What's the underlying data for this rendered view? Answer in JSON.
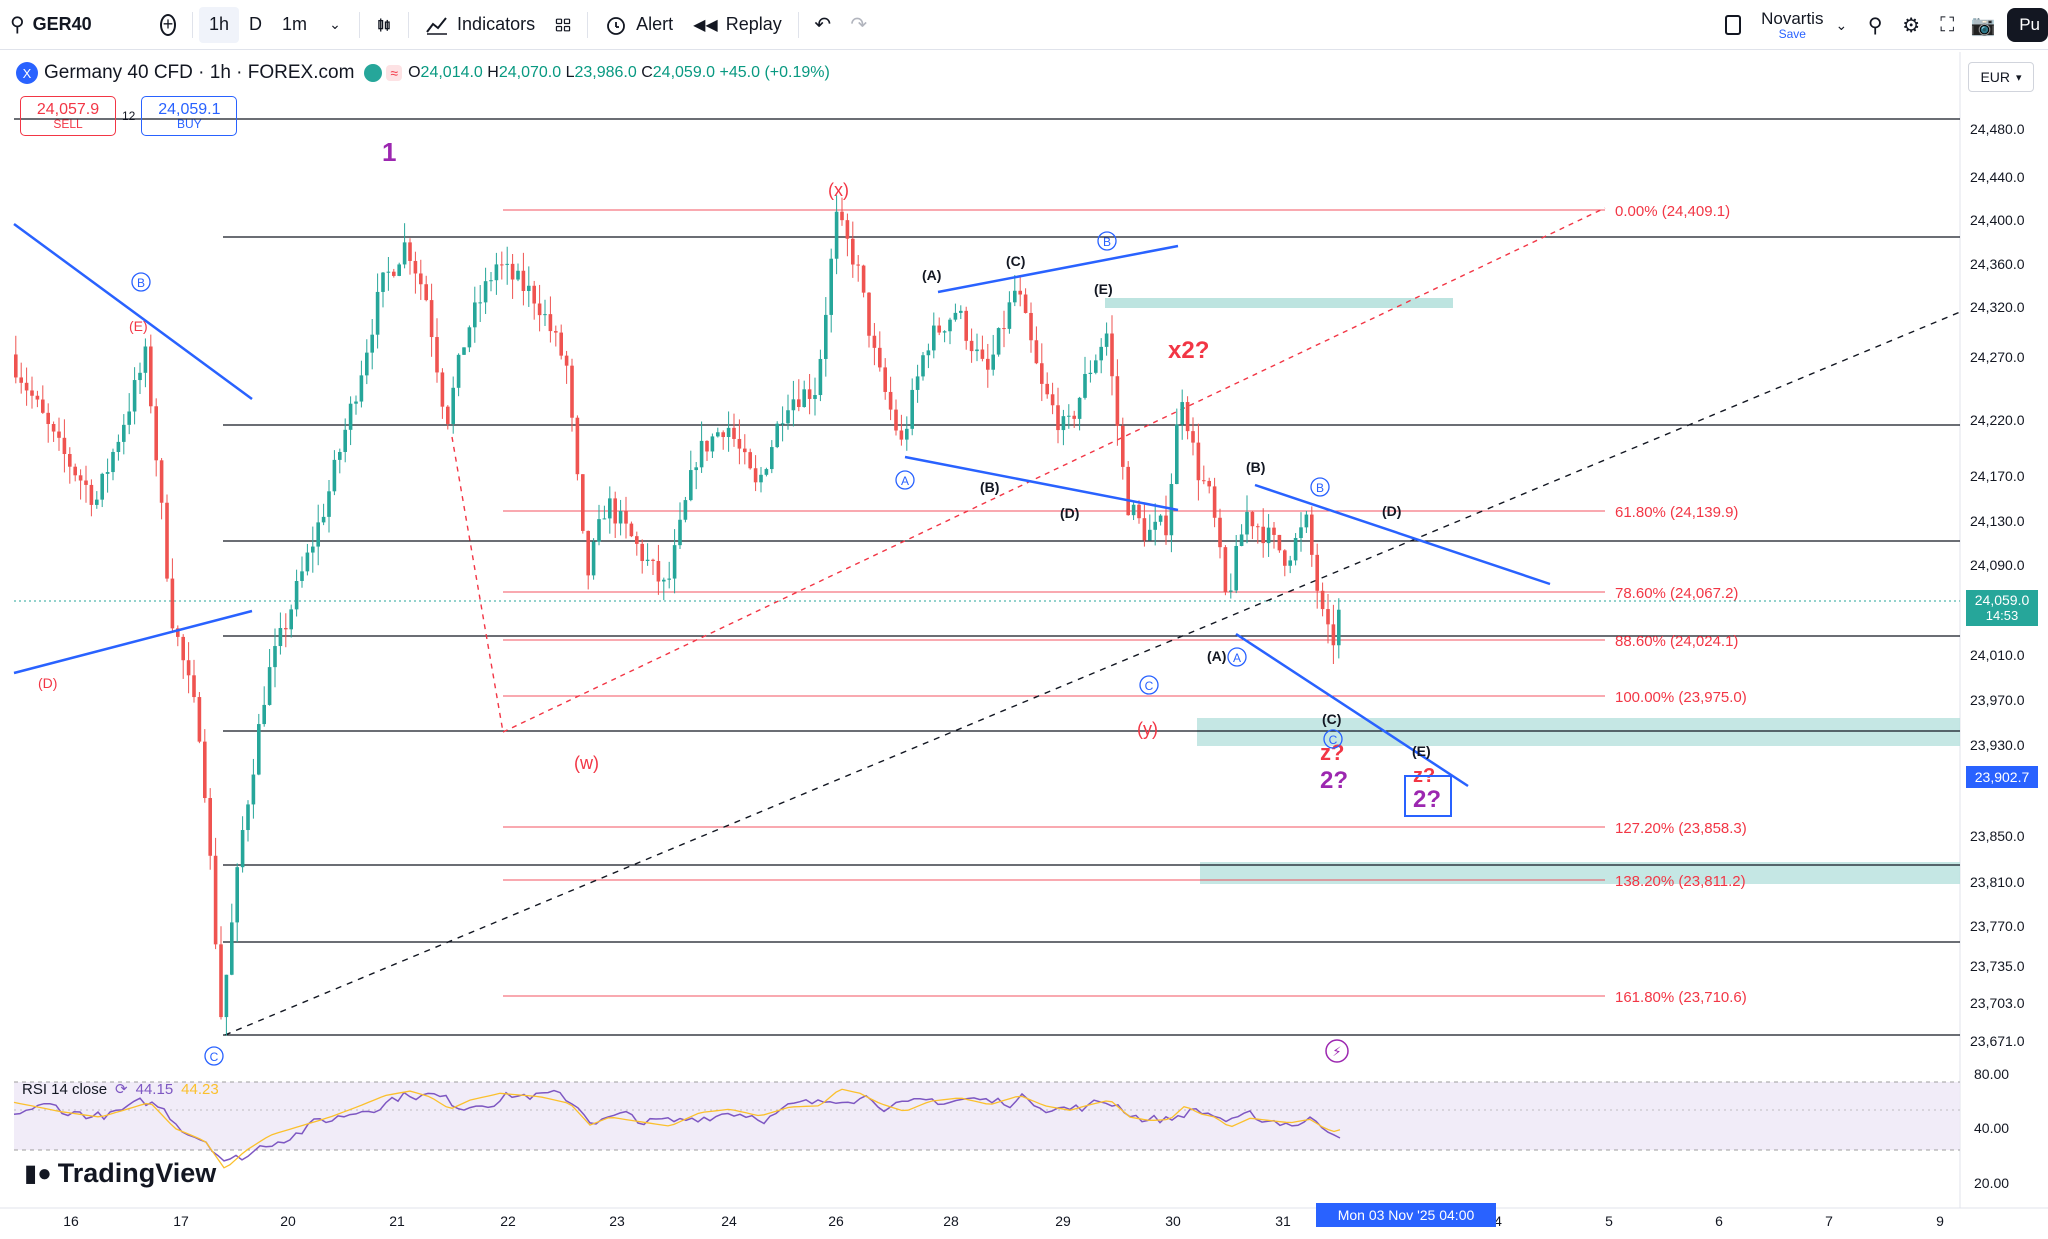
{
  "toolbar": {
    "symbol": "GER40",
    "intervals": [
      "1h",
      "D",
      "1m"
    ],
    "indicators_label": "Indicators",
    "alert_label": "Alert",
    "replay_label": "Replay",
    "profile_name": "Novartis",
    "profile_save": "Save",
    "publish_label": "Pu"
  },
  "legend": {
    "title": "Germany 40 CFD · 1h · FOREX.com",
    "wave_icon": "≈",
    "open_label": "O",
    "open": "24,014.0",
    "high_label": "H",
    "high": "24,070.0",
    "low_label": "L",
    "low": "23,986.0",
    "close_label": "C",
    "close": "24,059.0",
    "change": "+45.0 (+0.19%)"
  },
  "trade": {
    "sell_price": "24,057.9",
    "sell_label": "SELL",
    "spread": "12",
    "buy_price": "24,059.1",
    "buy_label": "BUY"
  },
  "currency": "EUR",
  "price_axis": [
    "24,480.0",
    "24,440.0",
    "24,400.0",
    "24,360.0",
    "24,320.0",
    "24,270.0",
    "24,220.0",
    "24,170.0",
    "24,130.0",
    "24,090.0",
    "24,010.0",
    "23,970.0",
    "23,930.0",
    "23,850.0",
    "23,810.0",
    "23,770.0",
    "23,735.0",
    "23,703.0",
    "23,671.0"
  ],
  "current_price": "24,059.0",
  "countdown": "14:53",
  "cursor_price": "23,902.7",
  "rsi": {
    "label": "RSI 14 close",
    "value1": "44.15",
    "value2": "44.23",
    "axis": [
      "80.00",
      "40.00",
      "20.00"
    ]
  },
  "time_axis": [
    "16",
    "17",
    "20",
    "21",
    "22",
    "23",
    "24",
    "26",
    "28",
    "29",
    "30",
    "31",
    "4",
    "5",
    "6",
    "7",
    "9"
  ],
  "time_cursor": "Mon 03 Nov '25   04:00",
  "brand": "TradingView",
  "fib_levels": [
    {
      "label": "0.00% (24,409.1)"
    },
    {
      "label": "61.80% (24,139.9)"
    },
    {
      "label": "78.60% (24,067.2)"
    },
    {
      "label": "88.60% (24,024.1)"
    },
    {
      "label": "100.00% (23,975.0)"
    },
    {
      "label": "127.20% (23,858.3)"
    },
    {
      "label": "138.20% (23,811.2)"
    },
    {
      "label": "161.80% (23,710.6)"
    }
  ],
  "wave_labels": {
    "one": "1",
    "x": "(x)",
    "w": "(w)",
    "y": "(y)",
    "x2": "x2?",
    "z_a": "z?",
    "two_a": "2?",
    "z_b": "z?",
    "two_b": "2?",
    "A": "(A)",
    "B": "(B)",
    "C": "(C)",
    "D": "(D)",
    "E": "(E)",
    "circ_a": "A",
    "circ_b": "B",
    "circ_c": "C",
    "red_e": "(E)",
    "red_d": "(D)"
  },
  "chart_data": {
    "type": "candlestick",
    "symbol": "Germany 40 CFD",
    "interval": "1h",
    "y_range": [
      23671,
      24480
    ],
    "last_price": 24059.0,
    "x_ticks": [
      "16",
      "17",
      "20",
      "21",
      "22",
      "23",
      "24",
      "26",
      "28",
      "29",
      "30",
      "31",
      "4",
      "5",
      "6",
      "7",
      "9"
    ],
    "fib_retracement": [
      {
        "ratio": 0.0,
        "price": 24409.1
      },
      {
        "ratio": 0.618,
        "price": 24139.9
      },
      {
        "ratio": 0.786,
        "price": 24067.2
      },
      {
        "ratio": 0.886,
        "price": 24024.1
      },
      {
        "ratio": 1.0,
        "price": 23975.0
      },
      {
        "ratio": 1.272,
        "price": 23858.3
      },
      {
        "ratio": 1.382,
        "price": 23811.2
      },
      {
        "ratio": 1.618,
        "price": 23710.6
      }
    ],
    "colors": {
      "up": "#26a69a",
      "down": "#ef5350",
      "fib": "#f23645",
      "trend": "#2962ff",
      "zone": "#b2dfdb"
    }
  }
}
